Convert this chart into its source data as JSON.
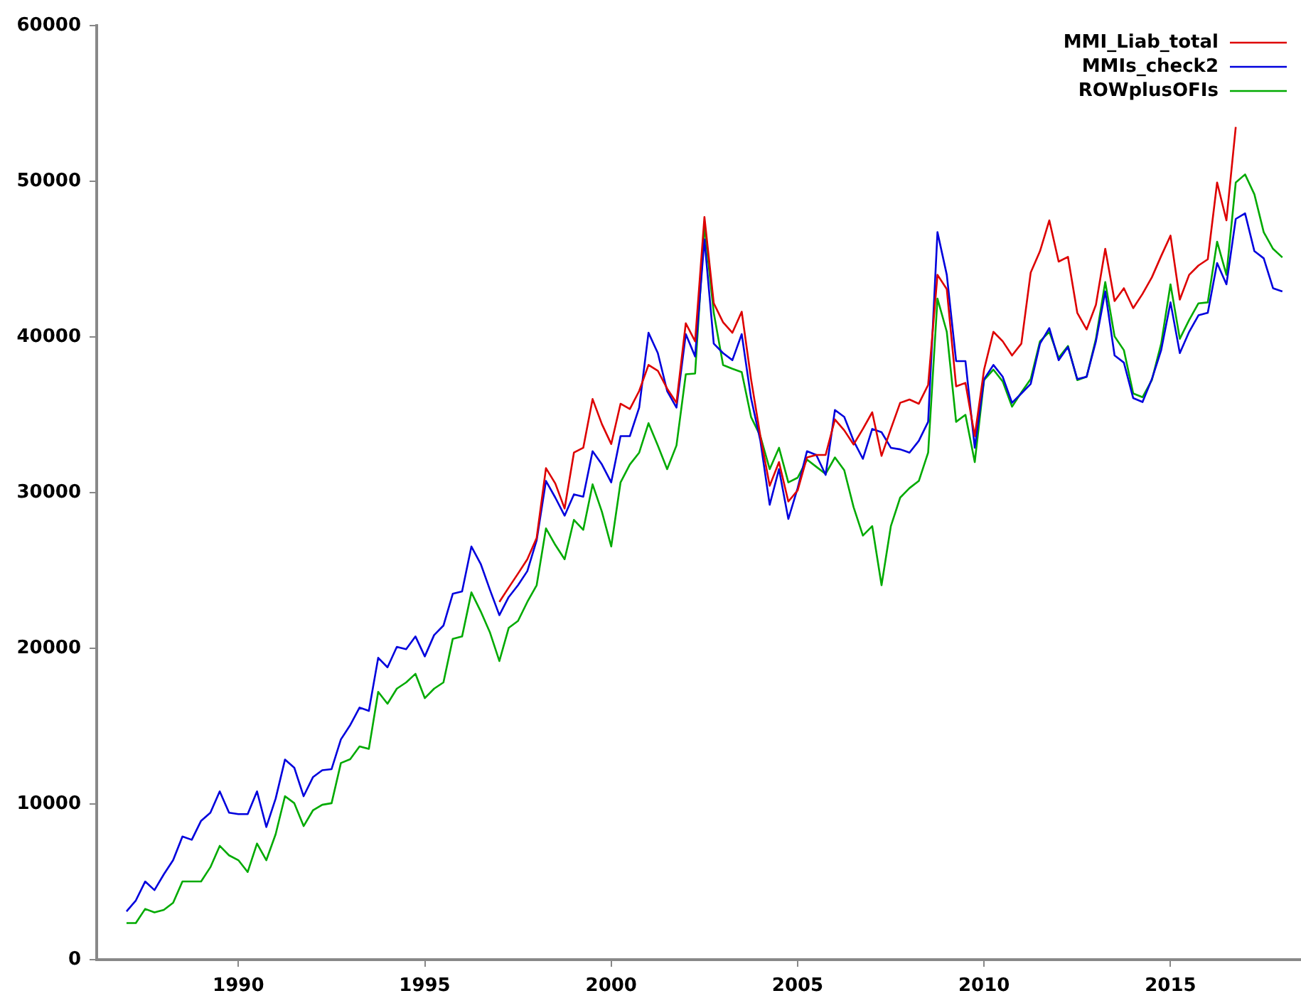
{
  "chart_data": {
    "type": "line",
    "x": [
      1987,
      1987.25,
      1987.5,
      1987.75,
      1988,
      1988.25,
      1988.5,
      1988.75,
      1989,
      1989.25,
      1989.5,
      1989.75,
      1990,
      1990.25,
      1990.5,
      1990.75,
      1991,
      1991.25,
      1991.5,
      1991.75,
      1992,
      1992.25,
      1992.5,
      1992.75,
      1993,
      1993.25,
      1993.5,
      1993.75,
      1994,
      1994.25,
      1994.5,
      1994.75,
      1995,
      1995.25,
      1995.5,
      1995.75,
      1996,
      1996.25,
      1996.5,
      1996.75,
      1997,
      1997.25,
      1997.5,
      1997.75,
      1998,
      1998.25,
      1998.5,
      1998.75,
      1999,
      1999.25,
      1999.5,
      1999.75,
      2000,
      2000.25,
      2000.5,
      2000.75,
      2001,
      2001.25,
      2001.5,
      2001.75,
      2002,
      2002.25,
      2002.5,
      2002.75,
      2003,
      2003.25,
      2003.5,
      2003.75,
      2004,
      2004.25,
      2004.5,
      2004.75,
      2005,
      2005.25,
      2005.5,
      2005.75,
      2006,
      2006.25,
      2006.5,
      2006.75,
      2007,
      2007.25,
      2007.5,
      2007.75,
      2008,
      2008.25,
      2008.5,
      2008.75,
      2009,
      2009.25,
      2009.5,
      2009.75,
      2010,
      2010.25,
      2010.5,
      2010.75,
      2011,
      2011.25,
      2011.5,
      2011.75,
      2012,
      2012.25,
      2012.5,
      2012.75,
      2013,
      2013.25,
      2013.5,
      2013.75,
      2014,
      2014.25,
      2014.5,
      2014.75,
      2015,
      2015.25,
      2015.5,
      2015.75,
      2016,
      2016.25,
      2016.5,
      2016.75,
      2017,
      2017.25,
      2017.5,
      2017.75,
      2018
    ],
    "series": [
      {
        "name": "MMI_Liab_total",
        "color": "#dd0000",
        "values": [
          null,
          null,
          null,
          null,
          null,
          null,
          null,
          null,
          null,
          null,
          null,
          null,
          null,
          null,
          null,
          null,
          null,
          null,
          null,
          null,
          null,
          null,
          null,
          null,
          null,
          null,
          null,
          null,
          null,
          null,
          null,
          null,
          null,
          null,
          null,
          null,
          null,
          null,
          null,
          null,
          22980,
          23900,
          24800,
          25720,
          27090,
          31570,
          30590,
          28980,
          32570,
          32880,
          36010,
          34400,
          33120,
          35710,
          35370,
          36530,
          38200,
          37830,
          36680,
          35770,
          40880,
          39720,
          47700,
          42160,
          40940,
          40270,
          41620,
          37290,
          33630,
          30440,
          31960,
          29430,
          30140,
          32260,
          32420,
          32420,
          34700,
          34000,
          33090,
          34090,
          35160,
          32360,
          34090,
          35770,
          35980,
          35710,
          36920,
          43990,
          43070,
          36830,
          37050,
          33630,
          37900,
          40330,
          39720,
          38810,
          39570,
          44130,
          45510,
          47490,
          44840,
          45140,
          41550,
          40480,
          42070,
          45660,
          42310,
          43130,
          41850,
          42770,
          43830,
          45200,
          46510,
          42400,
          43990,
          44590,
          44990,
          49920,
          47490,
          53490,
          null,
          null,
          null,
          null,
          null
        ]
      },
      {
        "name": "MMIs_check2",
        "color": "#0000dd",
        "values": [
          3100,
          3800,
          5020,
          4470,
          5480,
          6390,
          7910,
          7700,
          8920,
          9440,
          10810,
          9440,
          9350,
          9350,
          10810,
          8520,
          10350,
          12850,
          12330,
          10500,
          11720,
          12170,
          12240,
          14150,
          15070,
          16190,
          15980,
          19390,
          18780,
          20090,
          19940,
          20760,
          19480,
          20850,
          21460,
          23500,
          23650,
          26540,
          25420,
          23740,
          22130,
          23290,
          24050,
          24960,
          26940,
          30750,
          29680,
          28520,
          29890,
          29740,
          32660,
          31810,
          30660,
          33630,
          33630,
          35460,
          40270,
          38960,
          36530,
          35460,
          40180,
          38750,
          46270,
          39570,
          38960,
          38510,
          40180,
          36070,
          33330,
          29220,
          31510,
          28310,
          30290,
          32660,
          32420,
          31140,
          35310,
          34860,
          33330,
          32170,
          34090,
          33880,
          32880,
          32780,
          32570,
          33330,
          34550,
          46730,
          43990,
          38450,
          38450,
          32880,
          37290,
          38200,
          37440,
          35770,
          36370,
          36980,
          39570,
          40570,
          38510,
          39360,
          37290,
          37440,
          39720,
          42920,
          38810,
          38350,
          36070,
          35820,
          37290,
          39150,
          42220,
          38960,
          40330,
          41390,
          41550,
          44750,
          43380,
          47580,
          47940,
          45510,
          45050,
          43130,
          42920
        ]
      },
      {
        "name": "ROWplusOFIs",
        "color": "#00aa00",
        "values": [
          2350,
          2350,
          3260,
          3040,
          3200,
          3650,
          5020,
          5020,
          5020,
          5940,
          7310,
          6700,
          6390,
          5630,
          7460,
          6390,
          8060,
          10500,
          10050,
          8580,
          9590,
          9950,
          10050,
          12630,
          12880,
          13700,
          13540,
          17200,
          16440,
          17410,
          17810,
          18360,
          16800,
          17410,
          17810,
          20610,
          20760,
          23590,
          22370,
          21000,
          19180,
          21310,
          21760,
          22980,
          24050,
          27700,
          26640,
          25720,
          28250,
          27610,
          30530,
          28770,
          26540,
          30660,
          31810,
          32570,
          34460,
          33030,
          31510,
          33030,
          37600,
          37650,
          47180,
          41550,
          38200,
          37960,
          37740,
          34860,
          33630,
          31510,
          32880,
          30660,
          30960,
          32120,
          31660,
          31200,
          32260,
          31440,
          29070,
          27240,
          27850,
          24050,
          27850,
          29680,
          30290,
          30750,
          32570,
          42460,
          40330,
          34550,
          35000,
          31960,
          37230,
          37900,
          37140,
          35520,
          36440,
          37290,
          39720,
          40330,
          38660,
          39420,
          37230,
          37440,
          39880,
          43530,
          40030,
          39150,
          36370,
          36130,
          37230,
          39570,
          43380,
          39880,
          41090,
          42160,
          42220,
          46120,
          43990,
          49920,
          50440,
          49160,
          46730,
          45660,
          45110
        ]
      }
    ],
    "xlim": [
      1986.2,
      2018.5
    ],
    "xticks": [
      1990,
      1995,
      2000,
      2005,
      2010,
      2015
    ],
    "ylim": [
      0,
      60000
    ],
    "yticks": [
      0,
      10000,
      20000,
      30000,
      40000,
      50000,
      60000
    ],
    "grid": false,
    "legend": "top right",
    "marker": "none",
    "line_style": "solid"
  }
}
